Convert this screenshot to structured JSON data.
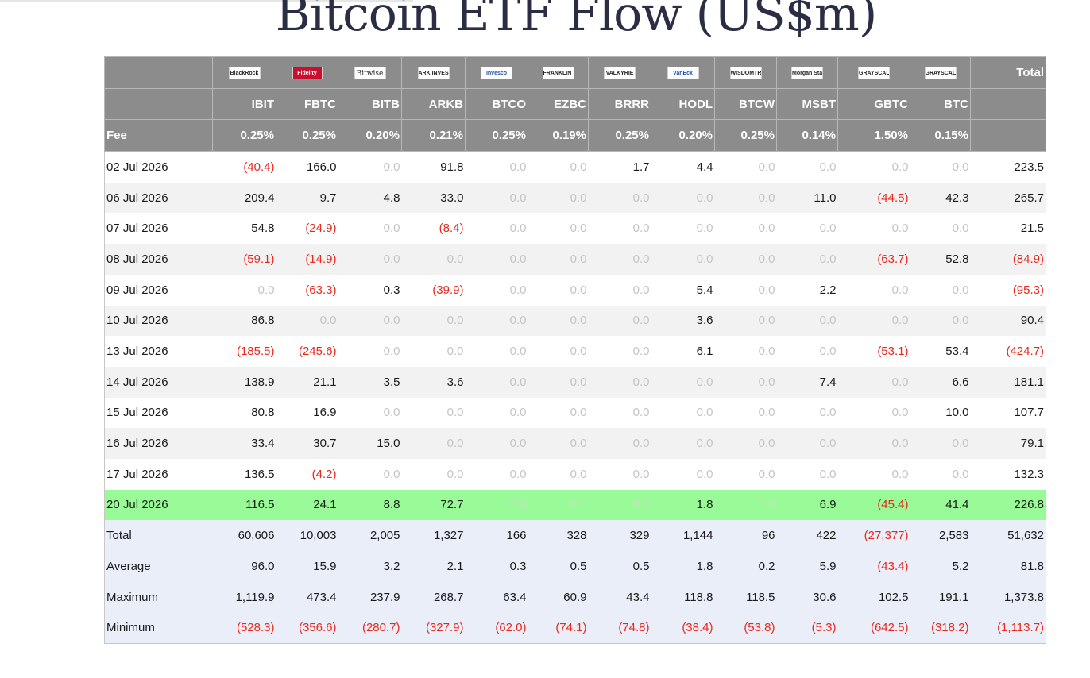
{
  "title": "Bitcoin ETF Flow (US$m)",
  "columns": [
    {
      "issuer": "BlackRock",
      "ticker": "IBIT",
      "fee": "0.25%"
    },
    {
      "issuer": "Fidelity",
      "ticker": "FBTC",
      "fee": "0.25%"
    },
    {
      "issuer": "Bitwise",
      "ticker": "BITB",
      "fee": "0.20%"
    },
    {
      "issuer": "ARK INVEST",
      "ticker": "ARKB",
      "fee": "0.21%"
    },
    {
      "issuer": "Invesco",
      "ticker": "BTCO",
      "fee": "0.25%"
    },
    {
      "issuer": "FRANKLIN TEMPLETON",
      "ticker": "EZBC",
      "fee": "0.19%"
    },
    {
      "issuer": "VALKYRIE",
      "ticker": "BRRR",
      "fee": "0.25%"
    },
    {
      "issuer": "VanEck",
      "ticker": "HODL",
      "fee": "0.20%"
    },
    {
      "issuer": "WISDOMTREE",
      "ticker": "BTCW",
      "fee": "0.25%"
    },
    {
      "issuer": "Morgan Stanley",
      "ticker": "MSBT",
      "fee": "0.14%"
    },
    {
      "issuer": "GRAYSCALE",
      "ticker": "GBTC",
      "fee": "1.50%"
    },
    {
      "issuer": "GRAYSCALE",
      "ticker": "BTC",
      "fee": "0.15%"
    }
  ],
  "header": {
    "total_label": "Total",
    "fee_label": "Fee",
    "fee_total": ""
  },
  "rows": [
    {
      "date": "02 Jul 2026",
      "values": [
        "(40.4)",
        "166.0",
        "0.0",
        "91.8",
        "0.0",
        "0.0",
        "1.7",
        "4.4",
        "0.0",
        "0.0",
        "0.0",
        "0.0"
      ],
      "total": "223.5"
    },
    {
      "date": "06 Jul 2026",
      "values": [
        "209.4",
        "9.7",
        "4.8",
        "33.0",
        "0.0",
        "0.0",
        "0.0",
        "0.0",
        "0.0",
        "11.0",
        "(44.5)",
        "42.3"
      ],
      "total": "265.7"
    },
    {
      "date": "07 Jul 2026",
      "values": [
        "54.8",
        "(24.9)",
        "0.0",
        "(8.4)",
        "0.0",
        "0.0",
        "0.0",
        "0.0",
        "0.0",
        "0.0",
        "0.0",
        "0.0"
      ],
      "total": "21.5"
    },
    {
      "date": "08 Jul 2026",
      "values": [
        "(59.1)",
        "(14.9)",
        "0.0",
        "0.0",
        "0.0",
        "0.0",
        "0.0",
        "0.0",
        "0.0",
        "0.0",
        "(63.7)",
        "52.8"
      ],
      "total": "(84.9)"
    },
    {
      "date": "09 Jul 2026",
      "values": [
        "0.0",
        "(63.3)",
        "0.3",
        "(39.9)",
        "0.0",
        "0.0",
        "0.0",
        "5.4",
        "0.0",
        "2.2",
        "0.0",
        "0.0"
      ],
      "total": "(95.3)"
    },
    {
      "date": "10 Jul 2026",
      "values": [
        "86.8",
        "0.0",
        "0.0",
        "0.0",
        "0.0",
        "0.0",
        "0.0",
        "3.6",
        "0.0",
        "0.0",
        "0.0",
        "0.0"
      ],
      "total": "90.4"
    },
    {
      "date": "13 Jul 2026",
      "values": [
        "(185.5)",
        "(245.6)",
        "0.0",
        "0.0",
        "0.0",
        "0.0",
        "0.0",
        "6.1",
        "0.0",
        "0.0",
        "(53.1)",
        "53.4"
      ],
      "total": "(424.7)"
    },
    {
      "date": "14 Jul 2026",
      "values": [
        "138.9",
        "21.1",
        "3.5",
        "3.6",
        "0.0",
        "0.0",
        "0.0",
        "0.0",
        "0.0",
        "7.4",
        "0.0",
        "6.6"
      ],
      "total": "181.1"
    },
    {
      "date": "15 Jul 2026",
      "values": [
        "80.8",
        "16.9",
        "0.0",
        "0.0",
        "0.0",
        "0.0",
        "0.0",
        "0.0",
        "0.0",
        "0.0",
        "0.0",
        "10.0"
      ],
      "total": "107.7"
    },
    {
      "date": "16 Jul 2026",
      "values": [
        "33.4",
        "30.7",
        "15.0",
        "0.0",
        "0.0",
        "0.0",
        "0.0",
        "0.0",
        "0.0",
        "0.0",
        "0.0",
        "0.0"
      ],
      "total": "79.1"
    },
    {
      "date": "17 Jul 2026",
      "values": [
        "136.5",
        "(4.2)",
        "0.0",
        "0.0",
        "0.0",
        "0.0",
        "0.0",
        "0.0",
        "0.0",
        "0.0",
        "0.0",
        "0.0"
      ],
      "total": "132.3"
    },
    {
      "date": "20 Jul 2026",
      "values": [
        "116.5",
        "24.1",
        "8.8",
        "72.7",
        "0.0",
        "0.0",
        "0.0",
        "1.8",
        "0.0",
        "6.9",
        "(45.4)",
        "41.4"
      ],
      "total": "226.8",
      "highlight": true
    }
  ],
  "stats": [
    {
      "label": "Total",
      "values": [
        "60,606",
        "10,003",
        "2,005",
        "1,327",
        "166",
        "328",
        "329",
        "1,144",
        "96",
        "422",
        "(27,377)",
        "2,583"
      ],
      "total": "51,632"
    },
    {
      "label": "Average",
      "values": [
        "96.0",
        "15.9",
        "3.2",
        "2.1",
        "0.3",
        "0.5",
        "0.5",
        "1.8",
        "0.2",
        "5.9",
        "(43.4)",
        "5.2"
      ],
      "total": "81.8"
    },
    {
      "label": "Maximum",
      "values": [
        "1,119.9",
        "473.4",
        "237.9",
        "268.7",
        "63.4",
        "60.9",
        "43.4",
        "118.8",
        "118.5",
        "30.6",
        "102.5",
        "191.1"
      ],
      "total": "1,373.8"
    },
    {
      "label": "Minimum",
      "values": [
        "(528.3)",
        "(356.6)",
        "(280.7)",
        "(327.9)",
        "(62.0)",
        "(74.1)",
        "(74.8)",
        "(38.4)",
        "(53.8)",
        "(5.3)",
        "(642.5)",
        "(318.2)"
      ],
      "total": "(1,113.7)"
    }
  ],
  "colors": {
    "header_bg": "#8c8c8c",
    "negative": "#e8271d",
    "zero": "#c4c4c4",
    "highlight": "#99fb97",
    "stats_bg": "#e9eef9"
  }
}
